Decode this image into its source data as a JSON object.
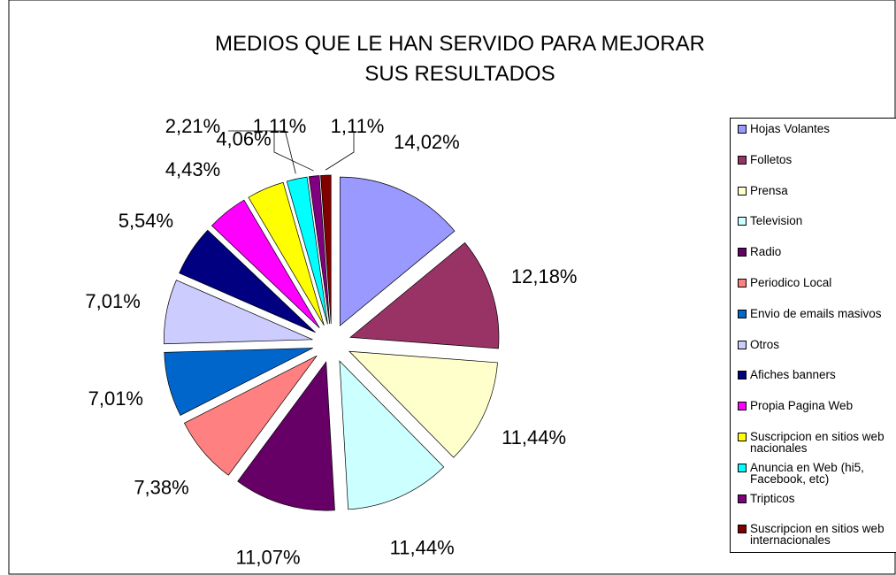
{
  "chart_data": {
    "type": "pie",
    "title": "MEDIOS QUE LE HAN SERVIDO PARA MEJORAR SUS RESULTADOS",
    "categories": [
      "Hojas Volantes",
      "Folletos",
      "Prensa",
      "Television",
      "Radio",
      "Periodico Local",
      "Envio de emails masivos",
      "Otros",
      "Afiches banners",
      "Propia Pagina Web",
      "Suscripcion en sitios web nacionales",
      "Anuncia en Web (hi5, Facebook, etc)",
      "Tripticos",
      "Suscripcion en sitios web internacionales"
    ],
    "values": [
      14.02,
      12.18,
      11.44,
      11.44,
      11.07,
      7.38,
      7.01,
      7.01,
      5.54,
      4.43,
      4.06,
      2.21,
      1.11,
      1.11
    ],
    "value_labels": [
      "14,02%",
      "12,18%",
      "11,44%",
      "11,44%",
      "11,07%",
      "7,38%",
      "7,01%",
      "7,01%",
      "5,54%",
      "4,43%",
      "4,06%",
      "2,21%",
      "1,11%",
      "1,11%"
    ],
    "colors": [
      "#9999ff",
      "#993366",
      "#ffffcc",
      "#ccffff",
      "#660066",
      "#ff8080",
      "#0066cc",
      "#ccccff",
      "#000080",
      "#ff00ff",
      "#ffff00",
      "#00ffff",
      "#800080",
      "#800000"
    ],
    "legend_position": "right"
  }
}
